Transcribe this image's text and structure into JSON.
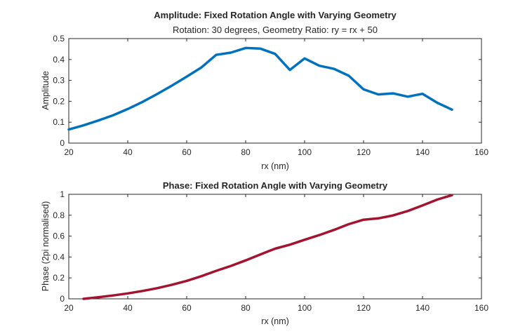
{
  "chart_data": [
    {
      "type": "line",
      "title": "Amplitude: Fixed Rotation Angle with Varying Geometry",
      "subtitle": "Rotation: 30 degrees, Geometry Ratio: ry = rx + 50",
      "xlabel": "rx (nm)",
      "ylabel": "Amplitude",
      "xlim": [
        20,
        160
      ],
      "ylim": [
        0,
        0.5
      ],
      "xticks": [
        "20",
        "40",
        "60",
        "80",
        "100",
        "120",
        "140",
        "160"
      ],
      "yticks": [
        "0",
        "0.1",
        "0.2",
        "0.3",
        "0.4",
        "0.5"
      ],
      "grid": false,
      "color": "#0072BD",
      "x": [
        20,
        25,
        30,
        35,
        40,
        45,
        50,
        55,
        60,
        65,
        70,
        75,
        80,
        85,
        90,
        95,
        100,
        105,
        110,
        115,
        120,
        125,
        130,
        135,
        140,
        145,
        150
      ],
      "y": [
        0.065,
        0.085,
        0.108,
        0.133,
        0.163,
        0.197,
        0.235,
        0.275,
        0.318,
        0.362,
        0.422,
        0.433,
        0.455,
        0.452,
        0.427,
        0.35,
        0.405,
        0.37,
        0.355,
        0.322,
        0.257,
        0.233,
        0.238,
        0.222,
        0.236,
        0.193,
        0.16
      ]
    },
    {
      "type": "line",
      "title": "Phase: Fixed Rotation Angle with Varying Geometry",
      "xlabel": "rx (nm)",
      "ylabel": "Phase (2pi normalised)",
      "xlim": [
        20,
        160
      ],
      "ylim": [
        0,
        1
      ],
      "xticks": [
        "20",
        "40",
        "60",
        "80",
        "100",
        "120",
        "140",
        "160"
      ],
      "yticks": [
        "0",
        "0.2",
        "0.4",
        "0.6",
        "0.8",
        "1"
      ],
      "grid": false,
      "color": "#A2142F",
      "x": [
        25,
        30,
        35,
        40,
        45,
        50,
        55,
        60,
        65,
        70,
        75,
        80,
        85,
        90,
        95,
        100,
        105,
        110,
        115,
        120,
        125,
        130,
        135,
        140,
        145,
        150
      ],
      "y": [
        0.0,
        0.015,
        0.032,
        0.052,
        0.075,
        0.102,
        0.135,
        0.172,
        0.217,
        0.268,
        0.315,
        0.368,
        0.425,
        0.48,
        0.518,
        0.565,
        0.61,
        0.66,
        0.715,
        0.757,
        0.77,
        0.798,
        0.84,
        0.893,
        0.95,
        0.992
      ]
    }
  ]
}
